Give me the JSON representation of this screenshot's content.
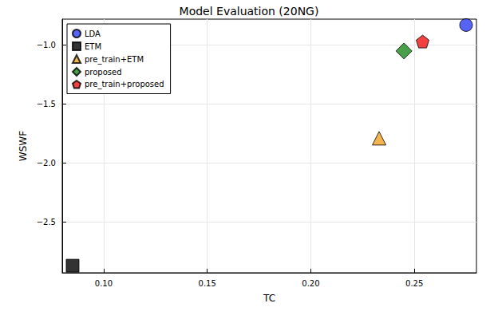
{
  "chart_data": {
    "type": "scatter",
    "title": "Model Evaluation (20NG)",
    "x_label": "TC",
    "y_label": "WSWF",
    "xlim": [
      0.08,
      0.28
    ],
    "ylim": [
      -2.93,
      -0.78
    ],
    "xticks": [
      {
        "value": 0.1,
        "label": "0.10"
      },
      {
        "value": 0.15,
        "label": "0.15"
      },
      {
        "value": 0.2,
        "label": "0.20"
      },
      {
        "value": 0.25,
        "label": "0.25"
      }
    ],
    "yticks": [
      {
        "value": -2.5,
        "label": "−2.5"
      },
      {
        "value": -2.0,
        "label": "−2.0"
      },
      {
        "value": -1.5,
        "label": "−1.5"
      },
      {
        "value": -1.0,
        "label": "−1.0"
      }
    ],
    "grid": true,
    "legend": "upper left",
    "series": [
      {
        "name": "LDA",
        "color": "#2a3cf5",
        "marker": "circle",
        "x": [
          0.275
        ],
        "values": [
          -0.83
        ]
      },
      {
        "name": "ETM",
        "color": "#000000",
        "marker": "square",
        "x": [
          0.085
        ],
        "values": [
          -2.87
        ]
      },
      {
        "name": "pre_train+ETM",
        "color": "#f0a020",
        "marker": "triangle",
        "x": [
          0.233
        ],
        "values": [
          -1.79
        ]
      },
      {
        "name": "proposed",
        "color": "#1a8a1a",
        "marker": "diamond",
        "x": [
          0.245
        ],
        "values": [
          -1.05
        ]
      },
      {
        "name": "pre_train+proposed",
        "color": "#ee1111",
        "marker": "pentagon",
        "x": [
          0.254
        ],
        "values": [
          -0.97
        ]
      }
    ]
  }
}
